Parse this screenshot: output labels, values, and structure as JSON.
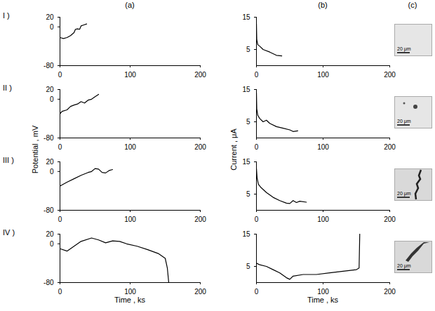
{
  "column_labels": [
    "(a)",
    "(b)",
    "(c)"
  ],
  "row_labels": [
    "I )",
    "II )",
    "III )",
    "IV )"
  ],
  "axis_labels": {
    "potential_y": "Potential , mV",
    "current_y": "Current , μA",
    "time_x": "Time , ks"
  },
  "chart_data": [
    {
      "type": "line",
      "color": "#000000",
      "xlim": [
        0,
        200
      ],
      "xticks": [
        0,
        100,
        200
      ],
      "ylim": [
        -80,
        20
      ],
      "yticks": [
        -80,
        0,
        20
      ],
      "x": [
        0,
        5,
        10,
        15,
        20,
        22,
        25,
        28,
        30,
        34,
        38
      ],
      "values": [
        -22,
        -24,
        -22,
        -18,
        -12,
        -5,
        -4,
        -5,
        2,
        4,
        6
      ]
    },
    {
      "type": "line",
      "color": "#000000",
      "xlim": [
        0,
        200
      ],
      "xticks": [
        0,
        100,
        200
      ],
      "ylim": [
        0,
        15
      ],
      "yticks": [
        5,
        15
      ],
      "x": [
        0,
        0.5,
        2,
        5,
        10,
        20,
        30,
        38
      ],
      "values": [
        13,
        8,
        6.5,
        6,
        5,
        4.2,
        3.2,
        3.0
      ]
    },
    {
      "type": "line",
      "color": "#000000",
      "xlim": [
        0,
        200
      ],
      "xticks": [
        0,
        100,
        200
      ],
      "ylim": [
        -80,
        20
      ],
      "yticks": [
        -80,
        0,
        20
      ],
      "x": [
        0,
        3,
        10,
        15,
        20,
        25,
        30,
        35,
        40,
        45,
        50,
        55
      ],
      "values": [
        -30,
        -25,
        -22,
        -15,
        -12,
        -10,
        -5,
        -8,
        -2,
        0,
        5,
        10
      ]
    },
    {
      "type": "line",
      "color": "#000000",
      "xlim": [
        0,
        200
      ],
      "xticks": [
        0,
        100,
        200
      ],
      "ylim": [
        0,
        15
      ],
      "yticks": [
        5,
        15
      ],
      "x": [
        0,
        0.5,
        2,
        5,
        10,
        15,
        20,
        30,
        40,
        50,
        55,
        62
      ],
      "values": [
        14,
        9,
        7,
        6,
        5,
        5.5,
        4.5,
        3.5,
        3,
        2.5,
        2.0,
        2.2
      ]
    },
    {
      "type": "line",
      "color": "#000000",
      "xlim": [
        0,
        200
      ],
      "xticks": [
        0,
        100,
        200
      ],
      "ylim": [
        -80,
        20
      ],
      "yticks": [
        -80,
        0,
        20
      ],
      "x": [
        0,
        10,
        20,
        30,
        40,
        45,
        50,
        55,
        60,
        65,
        70,
        75
      ],
      "values": [
        -30,
        -22,
        -15,
        -8,
        -2,
        0,
        6,
        5,
        -2,
        -3,
        2,
        4
      ]
    },
    {
      "type": "line",
      "color": "#000000",
      "xlim": [
        0,
        200
      ],
      "xticks": [
        0,
        100,
        200
      ],
      "ylim": [
        0,
        15
      ],
      "yticks": [
        5,
        15
      ],
      "x": [
        0,
        1,
        3,
        7,
        15,
        25,
        35,
        45,
        50,
        55,
        60,
        65,
        75
      ],
      "values": [
        13,
        10,
        8,
        7,
        5.5,
        4,
        3,
        2.2,
        2.1,
        3,
        2.4,
        2.8,
        2.5
      ]
    },
    {
      "type": "line",
      "color": "#000000",
      "xlim": [
        0,
        200
      ],
      "xticks": [
        0,
        100,
        200
      ],
      "ylim": [
        -80,
        20
      ],
      "yticks": [
        -80,
        0,
        20
      ],
      "x": [
        0,
        10,
        20,
        30,
        45,
        55,
        65,
        75,
        85,
        95,
        110,
        125,
        140,
        150,
        153,
        155
      ],
      "values": [
        -10,
        -15,
        -5,
        5,
        12,
        8,
        2,
        6,
        5,
        0,
        -5,
        -12,
        -20,
        -30,
        -50,
        -80
      ]
    },
    {
      "type": "line",
      "color": "#000000",
      "xlim": [
        0,
        200
      ],
      "xticks": [
        0,
        100,
        200
      ],
      "ylim": [
        0,
        15
      ],
      "yticks": [
        5,
        15
      ],
      "x": [
        0,
        5,
        15,
        25,
        35,
        45,
        50,
        55,
        70,
        90,
        110,
        130,
        150,
        154,
        155
      ],
      "values": [
        6,
        5.5,
        5,
        4,
        3,
        1.5,
        1,
        2,
        2.5,
        2.5,
        3,
        3.5,
        4,
        4.5,
        15
      ]
    }
  ],
  "micrographs": [
    {
      "scale_label": "20 μm"
    },
    {
      "scale_label": "20 μm"
    },
    {
      "scale_label": "20 μm"
    },
    {
      "scale_label": "20 μm"
    }
  ]
}
